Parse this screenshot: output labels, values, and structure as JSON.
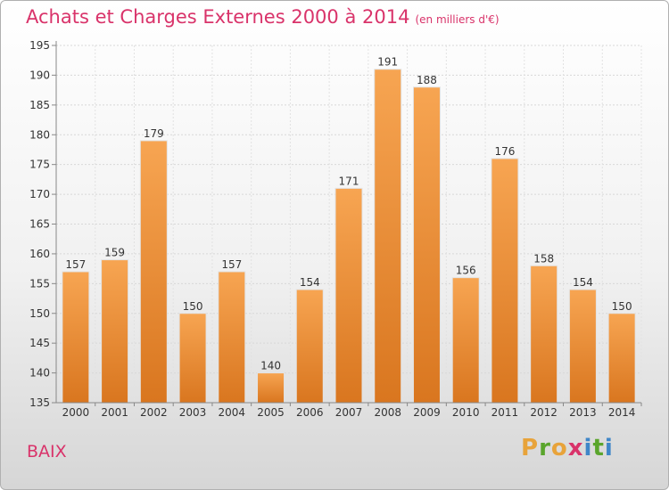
{
  "header": {
    "title": "Achats et Charges Externes 2000 à 2014",
    "unit": "(en milliers d'€)"
  },
  "footer": {
    "city": "BAIX",
    "logo": [
      "P",
      "r",
      "o",
      "x",
      "i",
      "t",
      "i"
    ]
  },
  "colors": {
    "title": "#d9336a",
    "bar_top": "#f7a552",
    "bar_bottom": "#d9761f",
    "logo_letters": [
      "#e8a33a",
      "#5aa52c",
      "#e8a33a",
      "#d9336a",
      "#3f86c8",
      "#5aa52c",
      "#3f86c8"
    ]
  },
  "chart_data": {
    "type": "bar",
    "title": "Achats et Charges Externes 2000 à 2014",
    "subtitle": "(en milliers d'€)",
    "categories": [
      "2000",
      "2001",
      "2002",
      "2003",
      "2004",
      "2005",
      "2006",
      "2007",
      "2008",
      "2009",
      "2010",
      "2011",
      "2012",
      "2013",
      "2014"
    ],
    "values": [
      157,
      159,
      179,
      150,
      157,
      140,
      154,
      171,
      191,
      188,
      156,
      176,
      158,
      154,
      150
    ],
    "ylim": [
      135,
      195
    ],
    "yticks": [
      135,
      140,
      145,
      150,
      155,
      160,
      165,
      170,
      175,
      180,
      185,
      190,
      195
    ],
    "grid": true,
    "data_labels": true
  }
}
